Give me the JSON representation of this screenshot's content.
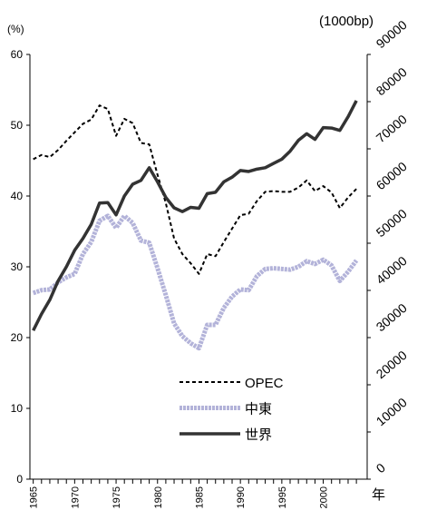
{
  "chart_data": {
    "type": "line",
    "y_label": "(%)",
    "y2_label": "(1000bp)",
    "x_label": "年",
    "x": [
      1965,
      1966,
      1967,
      1968,
      1969,
      1970,
      1971,
      1972,
      1973,
      1974,
      1975,
      1976,
      1977,
      1978,
      1979,
      1980,
      1981,
      1982,
      1983,
      1984,
      1985,
      1986,
      1987,
      1988,
      1989,
      1990,
      1991,
      1992,
      1993,
      1994,
      1995,
      1996,
      1997,
      1998,
      1999,
      2000,
      2001,
      2002,
      2003,
      2004
    ],
    "xlim": [
      1964.6,
      2005.3
    ],
    "xticks": [
      1965,
      1970,
      1975,
      1980,
      1985,
      1990,
      1995,
      2000
    ],
    "ylim": [
      0,
      60
    ],
    "yticks": [
      0,
      10,
      20,
      30,
      40,
      50,
      60
    ],
    "y2lim": [
      0,
      90000
    ],
    "y2ticks": [
      0,
      10000,
      20000,
      30000,
      40000,
      50000,
      60000,
      70000,
      80000,
      90000
    ],
    "legend": "lower center",
    "series": [
      {
        "name": "OPEC",
        "color": "#000000",
        "style": "dashed",
        "values": [
          45.2,
          45.8,
          45.5,
          46.5,
          47.8,
          49,
          50.2,
          50.8,
          52.8,
          52.3,
          48.5,
          50.9,
          50.3,
          47.5,
          47.3,
          43,
          39,
          34,
          31.8,
          30.5,
          29,
          31.8,
          31.5,
          33.5,
          35.4,
          37.3,
          37.5,
          39.3,
          40.6,
          40.7,
          40.6,
          40.6,
          41.2,
          42.2,
          40.7,
          41.4,
          40.5,
          38.3,
          39.8,
          41
        ]
      },
      {
        "name": "中東",
        "color": "#b3b3d9",
        "style": "thick",
        "values": [
          26.3,
          26.7,
          26.8,
          27.8,
          28.5,
          29,
          31.8,
          33.5,
          36.5,
          37.2,
          35.5,
          37.2,
          36.2,
          33.7,
          33.4,
          29.8,
          26,
          22,
          20.2,
          19.2,
          18.5,
          21.8,
          21.8,
          24.2,
          25.8,
          26.8,
          26.7,
          28.7,
          29.7,
          29.8,
          29.7,
          29.6,
          30,
          30.8,
          30.4,
          31,
          30.2,
          28,
          29.3,
          30.9
        ]
      },
      {
        "name": "世界",
        "color": "#333333",
        "style": "solid",
        "axis": "y2",
        "values": [
          31500,
          35000,
          38000,
          42000,
          45000,
          48500,
          51000,
          54000,
          58500,
          58600,
          56000,
          60000,
          62500,
          63300,
          66000,
          63000,
          59700,
          57500,
          56700,
          57600,
          57400,
          60500,
          60800,
          63000,
          64000,
          65400,
          65200,
          65700,
          66000,
          66900,
          67800,
          69500,
          71800,
          73200,
          72000,
          74500,
          74400,
          73900,
          76800,
          80200
        ]
      }
    ]
  }
}
